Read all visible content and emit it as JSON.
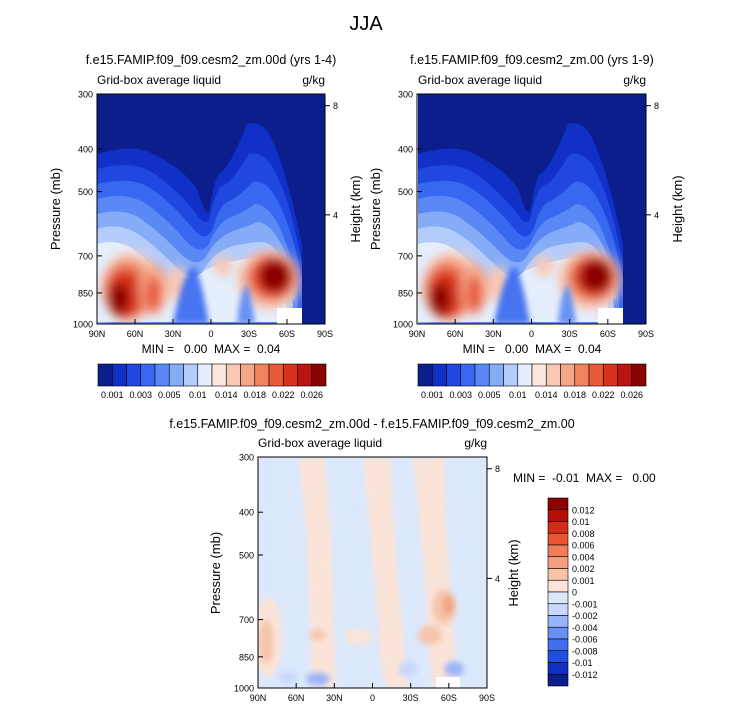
{
  "page_title": "JJA",
  "colors": {
    "full_scale": [
      "#0c1e8c",
      "#1030c8",
      "#2048e0",
      "#3868f0",
      "#5a88f4",
      "#86acf8",
      "#b4ccfb",
      "#e4eefd",
      "#fde6de",
      "#f8c8b4",
      "#f4a88a",
      "#f08260",
      "#e85a3c",
      "#d8321c",
      "#b81410",
      "#8a0404"
    ],
    "diff_scale": [
      "#0c1e8c",
      "#1030c8",
      "#2050e0",
      "#4070f0",
      "#6890f4",
      "#98b4f8",
      "#c8d8fb",
      "#dbe8fc",
      "#fde4d6",
      "#f8c4a8",
      "#f4a080",
      "#f07c58",
      "#e85434",
      "#d42c18",
      "#b41008",
      "#8a0202"
    ]
  },
  "panels": {
    "left": {
      "title": "f.e15.FAMIP.f09_f09.cesm2_zm.00d (yrs 1-4)",
      "left_string": "Grid-box average liquid",
      "right_string": "g/kg",
      "ylabel": "Pressure (mb)",
      "ylabel_right": "Height (km)",
      "minmax": "MIN =   0.00  MAX =  0.04",
      "cb_labels": [
        "0.001",
        "0.003",
        "0.005",
        "0.01",
        "0.014",
        "0.018",
        "0.022",
        "0.026"
      ]
    },
    "right": {
      "title": "f.e15.FAMIP.f09_f09.cesm2_zm.00 (yrs 1-9)",
      "left_string": "Grid-box average liquid",
      "right_string": "g/kg",
      "ylabel": "Pressure (mb)",
      "ylabel_right": "Height (km)",
      "minmax": "MIN =   0.00  MAX =  0.04",
      "cb_labels": [
        "0.001",
        "0.003",
        "0.005",
        "0.01",
        "0.014",
        "0.018",
        "0.022",
        "0.026"
      ]
    },
    "bottom": {
      "title": "f.e15.FAMIP.f09_f09.cesm2_zm.00d - f.e15.FAMIP.f09_f09.cesm2_zm.00",
      "left_string": "Grid-box average liquid",
      "right_string": "g/kg",
      "ylabel": "Pressure (mb)",
      "ylabel_right": "Height (km)",
      "minmax": "MIN =  -0.01  MAX =   0.00",
      "cb_labels": [
        "0.012",
        "0.01",
        "0.008",
        "0.006",
        "0.004",
        "0.002",
        "0.001",
        "0",
        "-0.001",
        "-0.002",
        "-0.004",
        "-0.006",
        "-0.008",
        "-0.01",
        "-0.012"
      ]
    }
  },
  "chart_data": [
    {
      "type": "heatmap",
      "title": "f.e15.FAMIP.f09_f09.cesm2_zm.00d (yrs 1-4)",
      "subtitle_left": "Grid-box average liquid",
      "units": "g/kg",
      "ylabel": "Pressure (mb)",
      "ylabel_right": "Height (km)",
      "x_ticks": [
        "90N",
        "60N",
        "30N",
        "0",
        "30S",
        "60S",
        "90S"
      ],
      "y_ticks": [
        "300",
        "400",
        "500",
        "700",
        "850",
        "1000"
      ],
      "y_ticks_right": [
        "8",
        "4"
      ],
      "ylim": [
        1000,
        300
      ],
      "xlim": [
        90,
        -90
      ],
      "contour_levels": [
        0.001,
        0.003,
        0.005,
        0.007,
        0.01,
        0.012,
        0.014,
        0.016,
        0.018,
        0.02,
        0.022,
        0.024,
        0.026,
        0.028,
        0.03
      ],
      "min": 0.0,
      "max": 0.04,
      "features": [
        {
          "lat": 70,
          "p": 900,
          "value": 0.03
        },
        {
          "lat": 50,
          "p": 870,
          "value": 0.028
        },
        {
          "lat": 38,
          "p": 860,
          "value": 0.022
        },
        {
          "lat": -12,
          "p": 830,
          "value": 0.014
        },
        {
          "lat": -50,
          "p": 840,
          "value": 0.035
        },
        {
          "lat": 0,
          "p": 880,
          "value": 0.008
        }
      ]
    },
    {
      "type": "heatmap",
      "title": "f.e15.FAMIP.f09_f09.cesm2_zm.00 (yrs 1-9)",
      "subtitle_left": "Grid-box average liquid",
      "units": "g/kg",
      "ylabel": "Pressure (mb)",
      "ylabel_right": "Height (km)",
      "x_ticks": [
        "90N",
        "60N",
        "30N",
        "0",
        "30S",
        "60S",
        "90S"
      ],
      "y_ticks": [
        "300",
        "400",
        "500",
        "700",
        "850",
        "1000"
      ],
      "y_ticks_right": [
        "8",
        "4"
      ],
      "ylim": [
        1000,
        300
      ],
      "xlim": [
        90,
        -90
      ],
      "contour_levels": [
        0.001,
        0.003,
        0.005,
        0.007,
        0.01,
        0.012,
        0.014,
        0.016,
        0.018,
        0.02,
        0.022,
        0.024,
        0.026,
        0.028,
        0.03
      ],
      "min": 0.0,
      "max": 0.04,
      "features": [
        {
          "lat": 70,
          "p": 900,
          "value": 0.03
        },
        {
          "lat": 50,
          "p": 870,
          "value": 0.028
        },
        {
          "lat": 38,
          "p": 860,
          "value": 0.022
        },
        {
          "lat": -12,
          "p": 830,
          "value": 0.014
        },
        {
          "lat": -50,
          "p": 840,
          "value": 0.035
        },
        {
          "lat": 0,
          "p": 880,
          "value": 0.008
        }
      ]
    },
    {
      "type": "heatmap",
      "title": "f.e15.FAMIP.f09_f09.cesm2_zm.00d - f.e15.FAMIP.f09_f09.cesm2_zm.00",
      "subtitle_left": "Grid-box average liquid",
      "units": "g/kg",
      "ylabel": "Pressure (mb)",
      "ylabel_right": "Height (km)",
      "x_ticks": [
        "90N",
        "60N",
        "30N",
        "0",
        "30S",
        "60S",
        "90S"
      ],
      "y_ticks": [
        "300",
        "400",
        "500",
        "700",
        "850",
        "1000"
      ],
      "y_ticks_right": [
        "8",
        "4"
      ],
      "ylim": [
        1000,
        300
      ],
      "xlim": [
        90,
        -90
      ],
      "contour_levels": [
        -0.012,
        -0.01,
        -0.008,
        -0.006,
        -0.004,
        -0.002,
        -0.001,
        0,
        0.001,
        0.002,
        0.004,
        0.006,
        0.008,
        0.01,
        0.012
      ],
      "min": -0.01,
      "max": 0.0,
      "features": [
        {
          "lat": 85,
          "p": 850,
          "value": 0.002
        },
        {
          "lat": -45,
          "p": 720,
          "value": 0.003
        },
        {
          "lat": -38,
          "p": 840,
          "value": 0.002
        },
        {
          "lat": -55,
          "p": 960,
          "value": -0.003
        },
        {
          "lat": 60,
          "p": 990,
          "value": -0.002
        }
      ]
    }
  ]
}
